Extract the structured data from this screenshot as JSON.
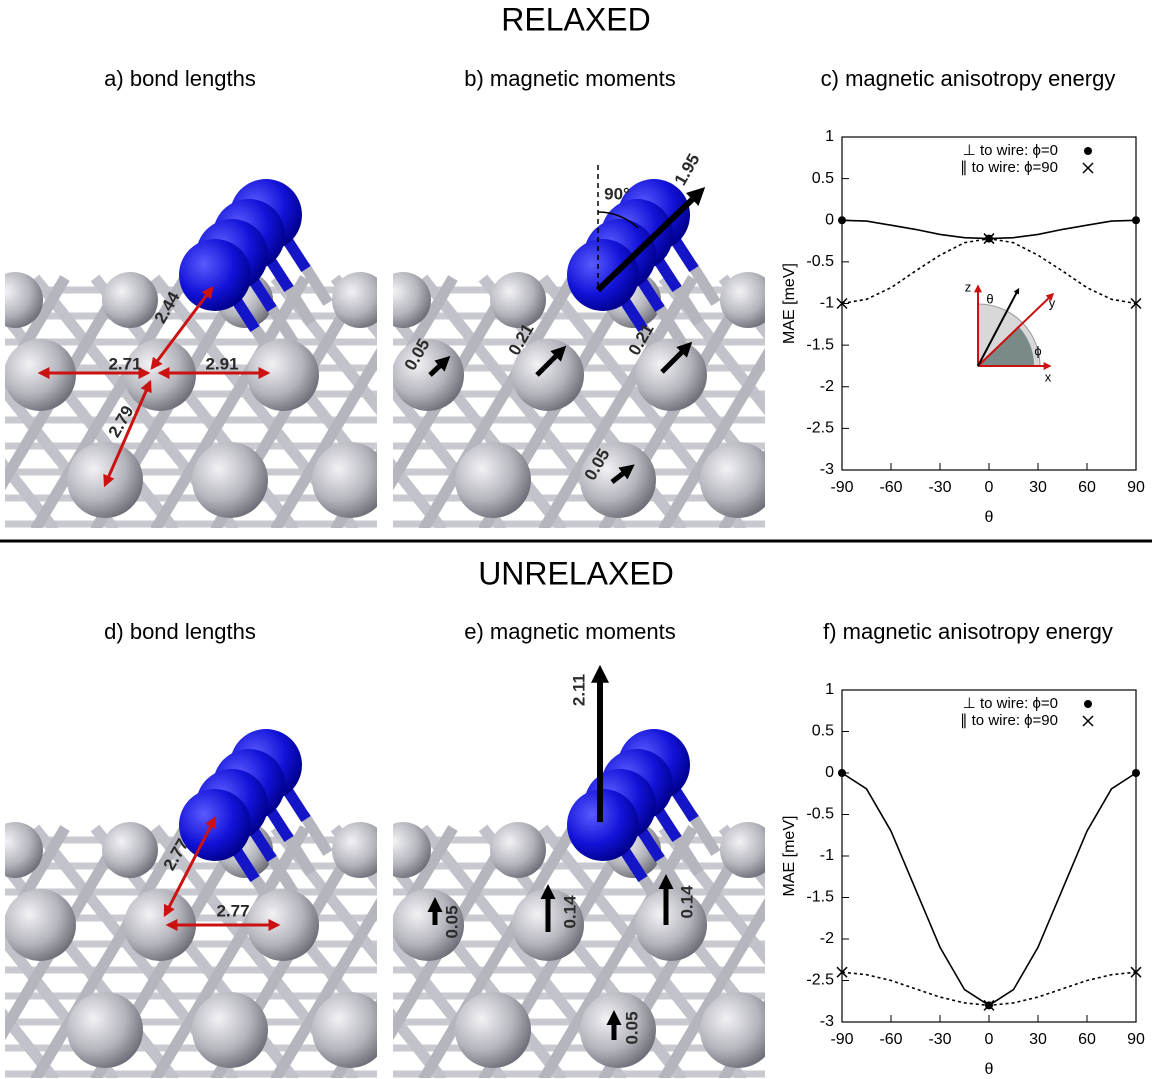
{
  "sections": [
    {
      "heading": "RELAXED",
      "panels": [
        {
          "title": "a) bond lengths",
          "labels": [
            2.71,
            2.44,
            2.91,
            2.79
          ]
        },
        {
          "title": "b) magnetic moments",
          "labels": [
            "90°",
            1.95,
            0.05,
            0.21,
            0.21,
            0.05
          ]
        }
      ]
    },
    {
      "heading": "UNRELAXED",
      "panels": [
        {
          "title": "d) bond lengths",
          "labels": [
            2.77,
            2.77
          ]
        },
        {
          "title": "e) magnetic moments",
          "labels": [
            2.11,
            0.05,
            0.14,
            0.14,
            0.05
          ]
        }
      ]
    }
  ],
  "chart_data": [
    {
      "type": "line",
      "title": "c) magnetic anisotropy energy",
      "x_label": "θ",
      "y_label": "MAE [meV]",
      "x": [
        -90,
        -75,
        -60,
        -45,
        -30,
        -15,
        0,
        15,
        30,
        45,
        60,
        75,
        90
      ],
      "series": [
        {
          "name": "⊥ to wire: ϕ=0",
          "color": "#000000",
          "linestyle": "solid",
          "marker": "circle",
          "values": [
            0,
            -0.01,
            -0.06,
            -0.11,
            -0.17,
            -0.21,
            -0.22,
            -0.21,
            -0.17,
            -0.11,
            -0.06,
            -0.01,
            0
          ]
        },
        {
          "name": "∥ to wire: ϕ=90",
          "color": "#000000",
          "linestyle": "dotted",
          "marker": "x",
          "values": [
            -1,
            -0.95,
            -0.81,
            -0.61,
            -0.42,
            -0.27,
            -0.22,
            -0.27,
            -0.42,
            -0.61,
            -0.81,
            -0.95,
            -1
          ]
        }
      ],
      "xlim": [
        -90,
        90
      ],
      "xticks": [
        -90,
        -60,
        -30,
        0,
        30,
        60,
        90
      ],
      "ylim": [
        -3,
        1
      ],
      "yticks": [
        1,
        0.5,
        0,
        -0.5,
        -1,
        -1.5,
        -2,
        -2.5,
        -3
      ],
      "legend": "upper right",
      "inset_labels": [
        "z",
        "θ",
        "y",
        "ϕ",
        "x"
      ]
    },
    {
      "type": "line",
      "title": "f) magnetic anisotropy energy",
      "x_label": "θ",
      "y_label": "MAE [meV]",
      "x": [
        -90,
        -75,
        -60,
        -45,
        -30,
        -15,
        0,
        15,
        30,
        45,
        60,
        75,
        90
      ],
      "series": [
        {
          "name": "⊥ to wire: ϕ=0",
          "color": "#000000",
          "linestyle": "solid",
          "marker": "circle",
          "values": [
            0,
            -0.19,
            -0.7,
            -1.4,
            -2.1,
            -2.61,
            -2.8,
            -2.61,
            -2.1,
            -1.4,
            -0.7,
            -0.19,
            0
          ]
        },
        {
          "name": "∥ to wire: ϕ=90",
          "color": "#000000",
          "linestyle": "dotted",
          "marker": "x",
          "values": [
            -2.4,
            -2.43,
            -2.5,
            -2.6,
            -2.7,
            -2.77,
            -2.8,
            -2.77,
            -2.7,
            -2.6,
            -2.5,
            -2.43,
            -2.4
          ]
        }
      ],
      "xlim": [
        -90,
        90
      ],
      "xticks": [
        -90,
        -60,
        -30,
        0,
        30,
        60,
        90
      ],
      "ylim": [
        -3,
        1
      ],
      "yticks": [
        1,
        0.5,
        0,
        -0.5,
        -1,
        -1.5,
        -2,
        -2.5,
        -3
      ],
      "legend": "upper right"
    }
  ]
}
